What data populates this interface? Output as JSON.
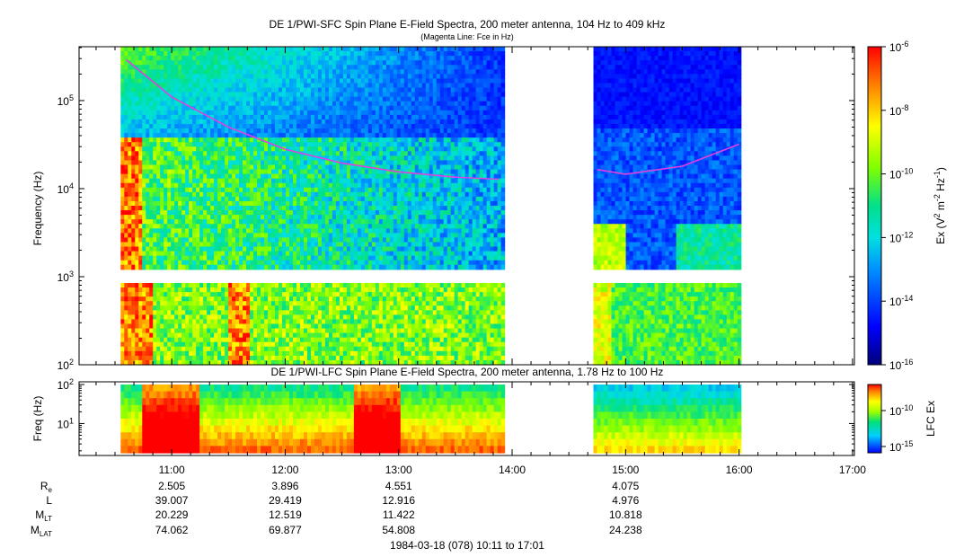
{
  "chart_data": [
    {
      "type": "heatmap",
      "title": "DE 1/PWI-SFC  Spin Plane E-Field Spectra, 200 meter antenna, 104 Hz to 409 kHz",
      "subtitle": "(Magenta Line: Fce in Hz)",
      "ylabel": "Frequency (Hz)",
      "yscale": "log",
      "ylim": [
        100,
        409000
      ],
      "yticks": [
        {
          "v": 100,
          "m": "10",
          "e": "2"
        },
        {
          "v": 1000,
          "m": "10",
          "e": "3"
        },
        {
          "v": 10000,
          "m": "10",
          "e": "4"
        },
        {
          "v": 100000,
          "m": "10",
          "e": "5"
        }
      ],
      "colorbar": {
        "label_parts": [
          "Ex (V",
          "2",
          " m",
          "-2",
          " Hz",
          "-1",
          ")"
        ],
        "scale": "log",
        "range": [
          1e-16,
          1e-06
        ],
        "ticks": [
          {
            "v": 1e-06,
            "m": "10",
            "e": "-6"
          },
          {
            "v": 1e-08,
            "m": "10",
            "e": "-8"
          },
          {
            "v": 1e-10,
            "m": "10",
            "e": "-10"
          },
          {
            "v": 1e-12,
            "m": "10",
            "e": "-12"
          },
          {
            "v": 1e-14,
            "m": "10",
            "e": "-14"
          },
          {
            "v": 1e-16,
            "m": "10",
            "e": "-16"
          }
        ]
      },
      "data_segments": [
        [
          "10:33",
          "13:56"
        ],
        [
          "14:43",
          "16:01"
        ]
      ],
      "series": [
        {
          "name": "Fce",
          "color": "#e040e0",
          "x": [
            "10:36",
            "11:00",
            "11:30",
            "12:00",
            "12:30",
            "13:00",
            "13:30",
            "13:53",
            "14:45",
            "15:00",
            "15:30",
            "16:00"
          ],
          "y": [
            290000,
            110000,
            50000,
            28000,
            19500,
            15500,
            13500,
            12800,
            16500,
            14600,
            18000,
            32000
          ]
        }
      ]
    },
    {
      "type": "heatmap",
      "title": "DE 1/PWI-LFC  Spin Plane E-Field Spectra, 200 meter antenna, 1.78 Hz to 100 Hz",
      "ylabel": "Freq (Hz)",
      "yscale": "log",
      "ylim": [
        1.78,
        100
      ],
      "yticks": [
        {
          "v": 100,
          "m": "10",
          "e": "2"
        },
        {
          "v": 10,
          "m": "10",
          "e": "1"
        }
      ],
      "colorbar": {
        "label": "LFC Ex",
        "scale": "log",
        "ticks": [
          {
            "v": 1e-10,
            "m": "10",
            "e": "-10"
          },
          {
            "v": 1e-15,
            "m": "10",
            "e": "-15"
          }
        ]
      },
      "data_segments": [
        [
          "10:33",
          "13:56"
        ],
        [
          "14:43",
          "16:01"
        ]
      ]
    }
  ],
  "xaxis": {
    "xlim": [
      "10:11",
      "17:01"
    ],
    "major_ticks": [
      "11:00",
      "12:00",
      "13:00",
      "14:00",
      "15:00",
      "16:00",
      "17:00"
    ]
  },
  "ephemeris": {
    "rows": [
      {
        "label": "R",
        "sub": "e",
        "values": [
          "2.505",
          "3.896",
          "4.551",
          "",
          "4.075",
          "",
          ""
        ]
      },
      {
        "label": "L",
        "sub": "",
        "values": [
          "39.007",
          "29.419",
          "12.916",
          "",
          "4.976",
          "",
          ""
        ]
      },
      {
        "label": "M",
        "sub": "LT",
        "values": [
          "20.229",
          "12.519",
          "11.422",
          "",
          "10.818",
          "",
          ""
        ]
      },
      {
        "label": "M",
        "sub": "LAT",
        "values": [
          "74.062",
          "69.877",
          "54.808",
          "",
          "24.238",
          "",
          ""
        ]
      }
    ]
  },
  "footer": "1984-03-18 (078) 10:11 to 17:01"
}
